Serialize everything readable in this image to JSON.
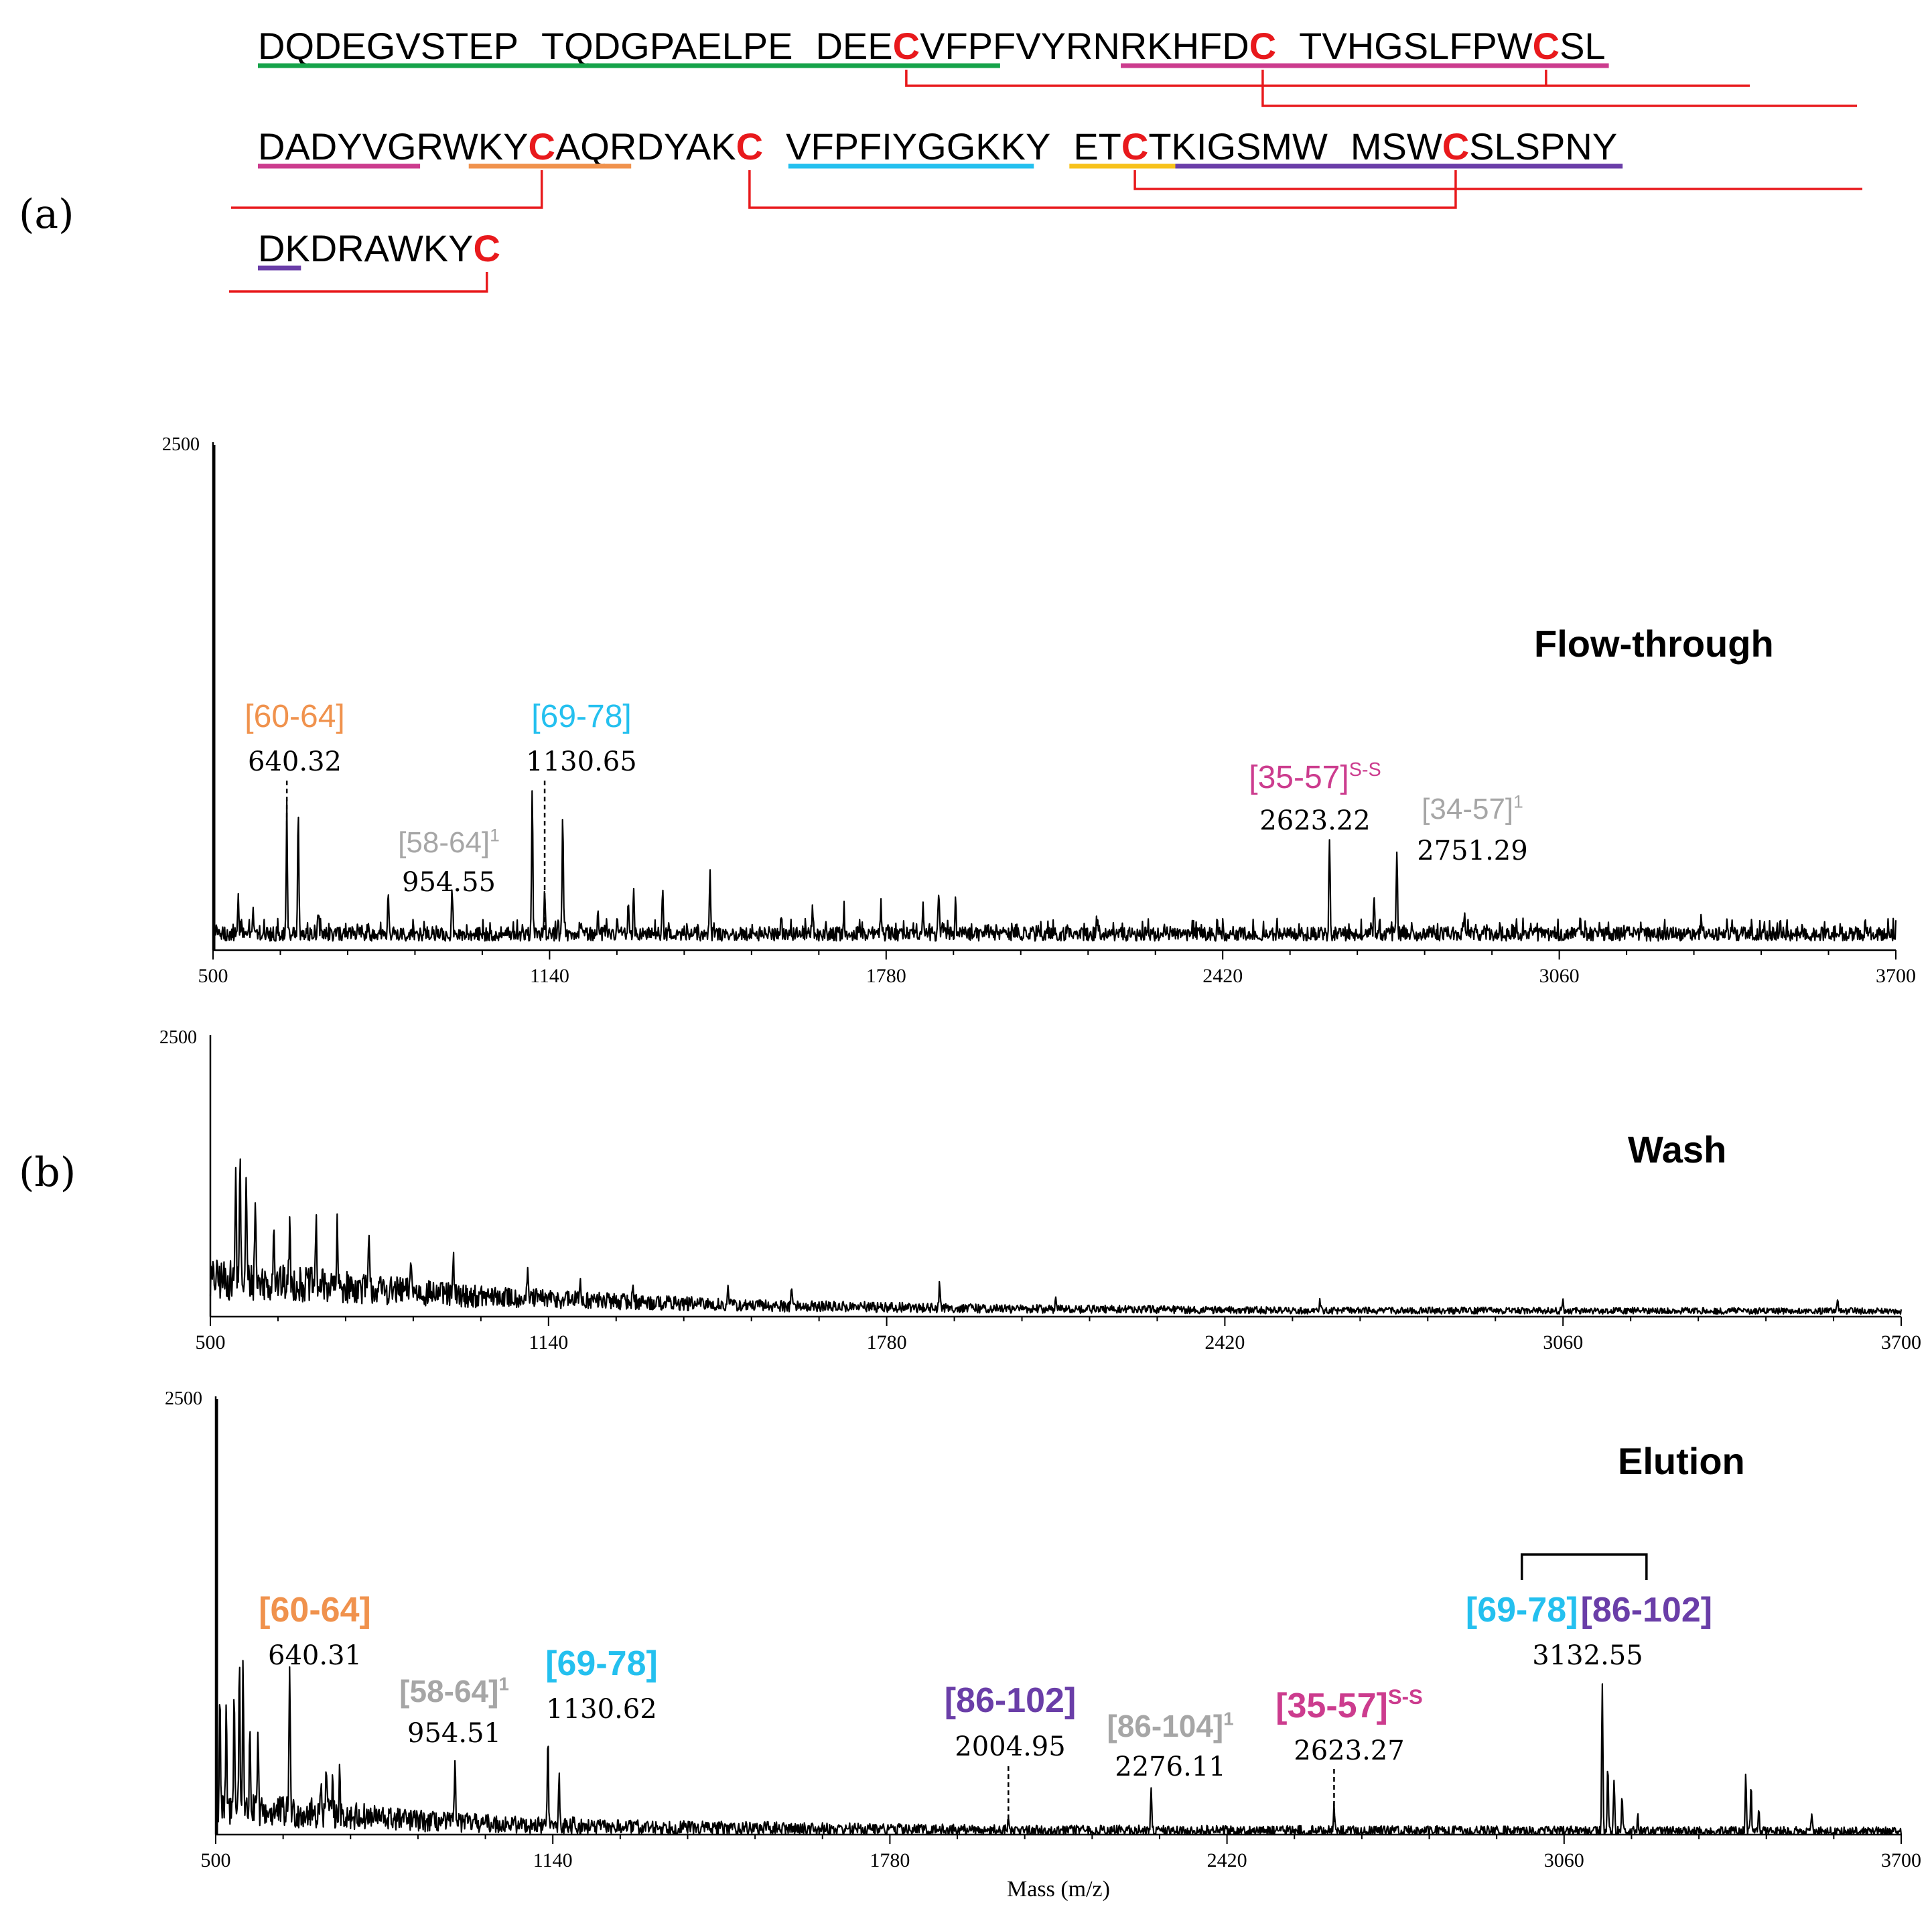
{
  "panel_labels": {
    "a": "(a)",
    "b": "(b)"
  },
  "colors": {
    "cys": "#e8191c",
    "bond": "#e8191c",
    "green": "#16a34a",
    "magenta": "#cc3c8e",
    "orange": "#f0924d",
    "cyan": "#24c0ef",
    "yellow": "#f7c21b",
    "purple": "#6a3ea8",
    "grey": "#a6a6a6",
    "black": "#000000"
  },
  "sequence": {
    "lines": [
      [
        "DQDEGVSTEP",
        "TQDGPAELPE",
        "DEE",
        "C",
        "VFPFVY",
        "RNRKHFD",
        "C",
        "TV",
        "HGSLFPW",
        "C",
        "SL"
      ],
      [
        "DADYVGRWKY",
        "C",
        "AQRDYAK",
        "C",
        "V",
        "FPFIYGGKKY",
        "ET",
        "C",
        "TKIGSMW",
        "MSW",
        "C",
        "SLSPNY"
      ],
      [
        "DKDRAWKY",
        "C"
      ]
    ]
  },
  "chart_data": [
    {
      "type": "line",
      "name": "flow",
      "title": "Flow-through",
      "xlim": [
        500,
        3700
      ],
      "ylim": [
        0,
        2500
      ],
      "x_ticks": [
        "500",
        "1140",
        "1780",
        "2420",
        "3060",
        "3700"
      ],
      "y_max_label": "2500",
      "xlabel": "",
      "baseline": 55,
      "peaks": [
        {
          "x": 548,
          "y": 170
        },
        {
          "x": 576,
          "y": 110
        },
        {
          "x": 640.32,
          "y": 610
        },
        {
          "x": 662,
          "y": 640
        },
        {
          "x": 700,
          "y": 90
        },
        {
          "x": 765,
          "y": 70
        },
        {
          "x": 833,
          "y": 230
        },
        {
          "x": 954.55,
          "y": 200
        },
        {
          "x": 1107,
          "y": 690
        },
        {
          "x": 1130.65,
          "y": 200
        },
        {
          "x": 1165,
          "y": 630
        },
        {
          "x": 1232,
          "y": 90
        },
        {
          "x": 1290,
          "y": 170
        },
        {
          "x": 1300,
          "y": 220
        },
        {
          "x": 1355,
          "y": 200
        },
        {
          "x": 1445,
          "y": 310
        },
        {
          "x": 1580,
          "y": 70
        },
        {
          "x": 1640,
          "y": 150
        },
        {
          "x": 1700,
          "y": 90
        },
        {
          "x": 1770,
          "y": 160
        },
        {
          "x": 1850,
          "y": 150
        },
        {
          "x": 1880,
          "y": 220
        },
        {
          "x": 1912,
          "y": 160
        },
        {
          "x": 2180,
          "y": 60
        },
        {
          "x": 2623.22,
          "y": 490
        },
        {
          "x": 2708,
          "y": 200
        },
        {
          "x": 2751.29,
          "y": 440
        },
        {
          "x": 2880,
          "y": 110
        },
        {
          "x": 3100,
          "y": 70
        },
        {
          "x": 3330,
          "y": 110
        },
        {
          "x": 3480,
          "y": 90
        }
      ],
      "annotations": [
        {
          "id": "fl-60-64",
          "label": "[60-64]",
          "sup": "",
          "color": "orange",
          "bold": false,
          "value": "640.32",
          "x": 640.32,
          "dashed": true
        },
        {
          "id": "fl-69-78",
          "label": "[69-78]",
          "sup": "",
          "color": "cyan",
          "bold": false,
          "value": "1130.65",
          "x": 1130.65,
          "dashed": true
        },
        {
          "id": "fl-58-64",
          "label": "[58-64]",
          "sup": "1",
          "color": "grey",
          "bold": false,
          "value": "954.55",
          "x": 954.55,
          "dashed": false
        },
        {
          "id": "fl-35-57",
          "label": "[35-57]",
          "sup": "S-S",
          "color": "magenta",
          "bold": false,
          "value": "2623.22",
          "x": 2623.22,
          "dashed": false
        },
        {
          "id": "fl-34-57",
          "label": "[34-57]",
          "sup": "1",
          "color": "grey",
          "bold": false,
          "value": "2751.29",
          "x": 2751.29,
          "dashed": false
        }
      ]
    },
    {
      "type": "line",
      "name": "wash",
      "title": "Wash",
      "xlim": [
        500,
        3700
      ],
      "ylim": [
        0,
        2500
      ],
      "x_ticks": [
        "500",
        "1140",
        "1780",
        "2420",
        "3060",
        "3700"
      ],
      "y_max_label": "2500",
      "xlabel": "",
      "baseline": 0,
      "peaks": [
        {
          "x": 548,
          "y": 1000
        },
        {
          "x": 556,
          "y": 1120
        },
        {
          "x": 568,
          "y": 900
        },
        {
          "x": 585,
          "y": 780
        },
        {
          "x": 620,
          "y": 620
        },
        {
          "x": 650,
          "y": 540
        },
        {
          "x": 700,
          "y": 560
        },
        {
          "x": 740,
          "y": 500
        },
        {
          "x": 800,
          "y": 420
        },
        {
          "x": 880,
          "y": 340
        },
        {
          "x": 960,
          "y": 300
        },
        {
          "x": 1100,
          "y": 230
        },
        {
          "x": 1200,
          "y": 200
        },
        {
          "x": 1300,
          "y": 180
        },
        {
          "x": 1480,
          "y": 160
        },
        {
          "x": 1600,
          "y": 200
        },
        {
          "x": 1880,
          "y": 230
        },
        {
          "x": 2100,
          "y": 100
        },
        {
          "x": 2600,
          "y": 80
        },
        {
          "x": 3060,
          "y": 80
        },
        {
          "x": 3580,
          "y": 90
        }
      ],
      "envelope": [
        {
          "x": 500,
          "y": 330
        },
        {
          "x": 700,
          "y": 280
        },
        {
          "x": 1000,
          "y": 180
        },
        {
          "x": 1500,
          "y": 100
        },
        {
          "x": 2000,
          "y": 70
        },
        {
          "x": 2600,
          "y": 55
        },
        {
          "x": 3700,
          "y": 50
        }
      ],
      "annotations": []
    },
    {
      "type": "line",
      "name": "elution",
      "title": "Elution",
      "xlim": [
        500,
        3700
      ],
      "ylim": [
        0,
        2500
      ],
      "x_ticks": [
        "500",
        "1140",
        "1780",
        "2420",
        "3060",
        "3700"
      ],
      "y_max_label": "2500",
      "xlabel": "Mass (m/z)",
      "baseline": 30,
      "envelope": [
        {
          "x": 500,
          "y": 140
        },
        {
          "x": 700,
          "y": 120
        },
        {
          "x": 900,
          "y": 75
        },
        {
          "x": 1200,
          "y": 45
        },
        {
          "x": 2000,
          "y": 25
        },
        {
          "x": 3700,
          "y": 18
        }
      ],
      "peaks": [
        {
          "x": 508,
          "y": 700
        },
        {
          "x": 520,
          "y": 530
        },
        {
          "x": 535,
          "y": 760
        },
        {
          "x": 545,
          "y": 870
        },
        {
          "x": 552,
          "y": 880
        },
        {
          "x": 565,
          "y": 500
        },
        {
          "x": 580,
          "y": 400
        },
        {
          "x": 640.31,
          "y": 890
        },
        {
          "x": 700,
          "y": 240
        },
        {
          "x": 710,
          "y": 280
        },
        {
          "x": 722,
          "y": 310
        },
        {
          "x": 735,
          "y": 220
        },
        {
          "x": 954.51,
          "y": 390
        },
        {
          "x": 1130.62,
          "y": 520
        },
        {
          "x": 1152,
          "y": 280
        },
        {
          "x": 1180,
          "y": 60
        },
        {
          "x": 2004.95,
          "y": 80
        },
        {
          "x": 2276.11,
          "y": 250
        },
        {
          "x": 2623.27,
          "y": 150
        },
        {
          "x": 3132.55,
          "y": 860
        },
        {
          "x": 3143,
          "y": 360
        },
        {
          "x": 3155,
          "y": 300
        },
        {
          "x": 3170,
          "y": 180
        },
        {
          "x": 3200,
          "y": 80
        },
        {
          "x": 3405,
          "y": 340
        },
        {
          "x": 3415,
          "y": 260
        },
        {
          "x": 3430,
          "y": 130
        },
        {
          "x": 3530,
          "y": 120
        }
      ],
      "annotations": [
        {
          "id": "el-60-64",
          "label": "[60-64]",
          "sup": "",
          "color": "orange",
          "bold": true,
          "value": "640.31",
          "x": 640.31,
          "dashed": false
        },
        {
          "id": "el-58-64",
          "label": "[58-64]",
          "sup": "1",
          "color": "grey",
          "bold": true,
          "value": "954.51",
          "x": 954.51,
          "dashed": false
        },
        {
          "id": "el-69-78",
          "label": "[69-78]",
          "sup": "",
          "color": "cyan",
          "bold": true,
          "value": "1130.62",
          "x": 1130.62,
          "dashed": false
        },
        {
          "id": "el-86-102",
          "label": "[86-102]",
          "sup": "",
          "color": "purple",
          "bold": true,
          "value": "2004.95",
          "x": 2004.95,
          "dashed": true
        },
        {
          "id": "el-86-104",
          "label": "[86-104]",
          "sup": "1",
          "color": "grey",
          "bold": true,
          "value": "2276.11",
          "x": 2276.11,
          "dashed": false
        },
        {
          "id": "el-35-57",
          "label": "[35-57]",
          "sup": "S-S",
          "color": "magenta",
          "bold": true,
          "value": "2623.27",
          "x": 2623.27,
          "dashed": true
        },
        {
          "id": "el-69-78-86-102",
          "label": "[69-78]",
          "label2": "[86-102]",
          "sup": "",
          "color": "cyan",
          "color2": "purple",
          "bold": true,
          "value": "3132.55",
          "x": 3132.55,
          "dashed": false,
          "bracket": true
        }
      ]
    }
  ]
}
